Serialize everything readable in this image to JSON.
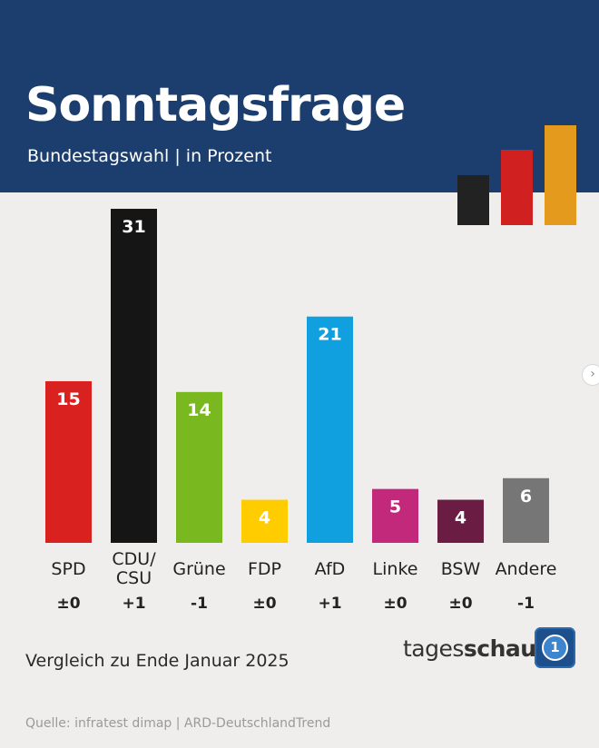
{
  "header": {
    "title": "Sonntagsfrage",
    "subtitle": "Bundestagswahl | in Prozent",
    "flag_colors": [
      "#222222",
      "#d0201f",
      "#e49a1c"
    ]
  },
  "chart_data": {
    "type": "bar",
    "title": "Sonntagsfrage",
    "subtitle": "Bundestagswahl | in Prozent",
    "categories": [
      "SPD",
      "CDU/\nCSU",
      "Grüne",
      "FDP",
      "AfD",
      "Linke",
      "BSW",
      "Andere"
    ],
    "values": [
      15,
      31,
      14,
      4,
      21,
      5,
      4,
      6
    ],
    "changes": [
      "±0",
      "+1",
      "-1",
      "±0",
      "+1",
      "±0",
      "±0",
      "-1"
    ],
    "colors": [
      "#d9211f",
      "#151515",
      "#7ab820",
      "#ffcc00",
      "#10a0e0",
      "#c3297a",
      "#6b1c42",
      "#767676"
    ],
    "label_colors": [
      "#ffffff",
      "#ffffff",
      "#ffffff",
      "#ffffff",
      "#ffffff",
      "#ffffff",
      "#ffffff",
      "#ffffff"
    ],
    "ylim": [
      0,
      31
    ],
    "grid": false,
    "legend": "none"
  },
  "footer": {
    "comparison": "Vergleich zu Ende Januar 2025",
    "source": "Quelle: infratest dimap | ARD-DeutschlandTrend",
    "brand_regular": "tages",
    "brand_bold": "schau",
    "logo_glyph": "1"
  },
  "nav": {
    "next_icon": "chevron-right-icon",
    "next_glyph": "›"
  }
}
